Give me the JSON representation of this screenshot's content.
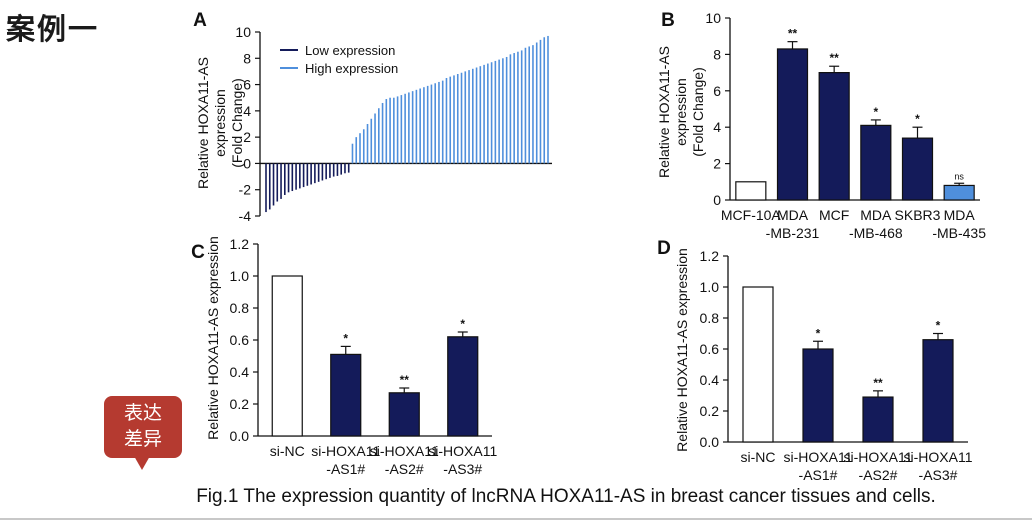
{
  "page": {
    "heading": "案例一",
    "caption": "Fig.1 The expression quantity of lncRNA HOXA11-AS in breast cancer tissues and cells.",
    "callout_line1": "表达",
    "callout_line2": "差异"
  },
  "colors": {
    "navy": "#141b5a",
    "light_blue": "#4f8fdc",
    "white_bar": "#ffffff",
    "callout": "#b53a30"
  },
  "chart_data": [
    {
      "panel": "A",
      "type": "bar",
      "ylabel": [
        "Relative HOXA11-AS",
        "expression",
        "(Fold Change)"
      ],
      "ylim": [
        -4,
        10
      ],
      "yticks": [
        "-4",
        "-2",
        "0",
        "2",
        "4",
        "6",
        "8",
        "10"
      ],
      "legend": [
        "Low expression",
        "High expression"
      ],
      "series": [
        {
          "name": "Low expression",
          "values": [
            -3.7,
            -3.5,
            -3.2,
            -2.9,
            -2.7,
            -2.4,
            -2.2,
            -2.1,
            -2.0,
            -1.9,
            -1.8,
            -1.7,
            -1.6,
            -1.5,
            -1.4,
            -1.3,
            -1.2,
            -1.1,
            -1.0,
            -0.95,
            -0.85,
            -0.75,
            -0.7
          ]
        },
        {
          "name": "High expression",
          "values": [
            1.5,
            2.0,
            2.3,
            2.6,
            3.0,
            3.4,
            3.8,
            4.2,
            4.6,
            4.9,
            5.0,
            5.0,
            5.1,
            5.2,
            5.3,
            5.4,
            5.5,
            5.6,
            5.7,
            5.8,
            5.9,
            6.0,
            6.1,
            6.2,
            6.3,
            6.5,
            6.6,
            6.7,
            6.8,
            6.9,
            7.0,
            7.1,
            7.2,
            7.3,
            7.4,
            7.5,
            7.6,
            7.7,
            7.8,
            7.9,
            8.0,
            8.1,
            8.3,
            8.4,
            8.5,
            8.6,
            8.8,
            8.9,
            9.0,
            9.2,
            9.4,
            9.6,
            9.7
          ]
        }
      ]
    },
    {
      "panel": "B",
      "type": "bar",
      "ylabel": [
        "Relative HOXA11-AS",
        "expression",
        "(Fold Change)"
      ],
      "ylim": [
        0,
        10
      ],
      "yticks": [
        "0",
        "2",
        "4",
        "6",
        "8",
        "10"
      ],
      "categories": [
        [
          "MCF-10A"
        ],
        [
          "MDA",
          "-MB-231"
        ],
        [
          "MCF"
        ],
        [
          "MDA",
          "-MB-468"
        ],
        [
          "SKBR3"
        ],
        [
          "MDA",
          "-MB-435"
        ]
      ],
      "values": [
        1.0,
        8.3,
        7.0,
        4.1,
        3.4,
        0.8
      ],
      "errors": [
        0,
        0.4,
        0.35,
        0.3,
        0.6,
        0.12
      ],
      "significance": [
        "",
        "**",
        "**",
        "*",
        "*",
        "ns"
      ],
      "bar_colors": [
        "white",
        "navy",
        "navy",
        "navy",
        "navy",
        "light_blue"
      ]
    },
    {
      "panel": "C",
      "type": "bar",
      "ylabel": [
        "Relative HOXA11-AS expression"
      ],
      "ylim": [
        0,
        1.2
      ],
      "yticks": [
        "0.0",
        "0.2",
        "0.4",
        "0.6",
        "0.8",
        "1.0",
        "1.2"
      ],
      "categories": [
        [
          "si-NC"
        ],
        [
          "si-HOXA11",
          "-AS1#"
        ],
        [
          "si-HOXA11",
          "-AS2#"
        ],
        [
          "si-HOXA11",
          "-AS3#"
        ]
      ],
      "values": [
        1.0,
        0.51,
        0.27,
        0.62
      ],
      "errors": [
        0,
        0.05,
        0.03,
        0.03
      ],
      "significance": [
        "",
        "*",
        "**",
        "*"
      ],
      "bar_colors": [
        "white",
        "navy",
        "navy",
        "navy"
      ]
    },
    {
      "panel": "D",
      "type": "bar",
      "ylabel": [
        "Relative HOXA11-AS expression"
      ],
      "ylim": [
        0,
        1.2
      ],
      "yticks": [
        "0.0",
        "0.2",
        "0.4",
        "0.6",
        "0.8",
        "1.0",
        "1.2"
      ],
      "categories": [
        [
          "si-NC"
        ],
        [
          "si-HOXA11",
          "-AS1#"
        ],
        [
          "si-HOXA11",
          "-AS2#"
        ],
        [
          "si-HOXA11",
          "-AS3#"
        ]
      ],
      "values": [
        1.0,
        0.6,
        0.29,
        0.66
      ],
      "errors": [
        0,
        0.05,
        0.04,
        0.04
      ],
      "significance": [
        "",
        "*",
        "**",
        "*"
      ],
      "bar_colors": [
        "white",
        "navy",
        "navy",
        "navy"
      ]
    }
  ]
}
